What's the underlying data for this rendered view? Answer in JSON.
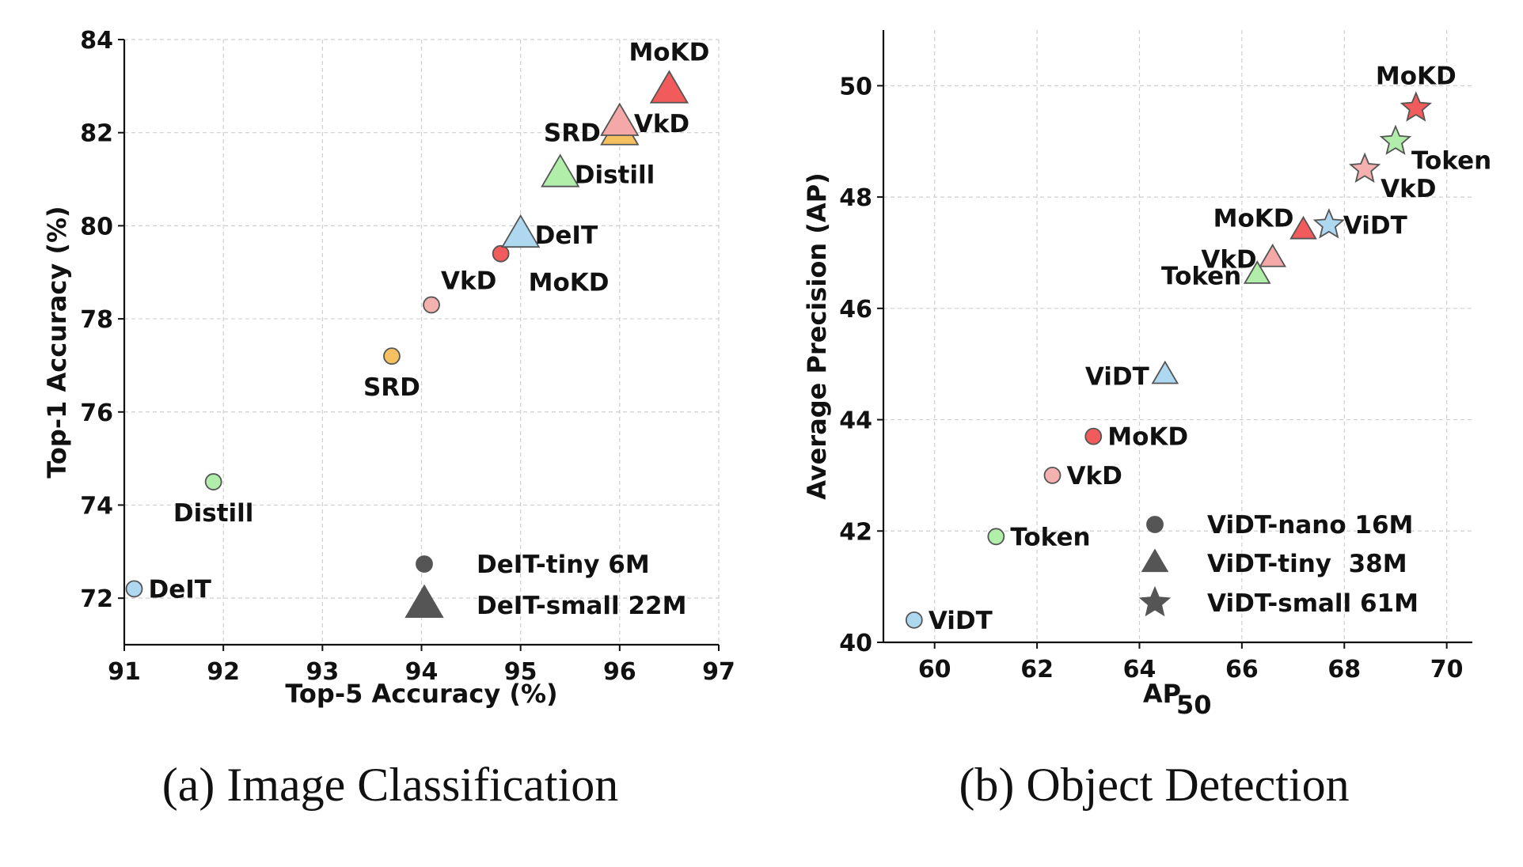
{
  "chart_data": [
    {
      "type": "scatter",
      "caption": "(a) Image Classification",
      "xlabel": "Top-5 Accuracy (%)",
      "ylabel": "Top-1 Accuracy (%)",
      "xlim": [
        91,
        97
      ],
      "ylim": [
        71,
        84
      ],
      "xticks": [
        "91",
        "92",
        "93",
        "94",
        "95",
        "96",
        "97"
      ],
      "yticks": [
        "72",
        "74",
        "76",
        "78",
        "80",
        "82",
        "84"
      ],
      "grid": true,
      "legend": {
        "position": "bottom-right",
        "items": [
          {
            "marker": "circle",
            "label": "DeIT-tiny 6M"
          },
          {
            "marker": "triangle",
            "label": "DeIT-small 22M"
          }
        ]
      },
      "points": [
        {
          "label": "DeIT",
          "marker": "circle",
          "x": 91.1,
          "y": 72.2,
          "color": "#add8f0",
          "label_pos": "right"
        },
        {
          "label": "Distill",
          "marker": "circle",
          "x": 91.9,
          "y": 74.5,
          "color": "#b0eeaa",
          "label_pos": "below"
        },
        {
          "label": "SRD",
          "marker": "circle",
          "x": 93.7,
          "y": 77.2,
          "color": "#f5c060",
          "label_pos": "below"
        },
        {
          "label": "VkD",
          "marker": "circle",
          "x": 94.1,
          "y": 78.3,
          "color": "#f5b0b0",
          "label_pos": "above-left"
        },
        {
          "label": "MoKD",
          "marker": "circle",
          "x": 94.8,
          "y": 79.4,
          "color": "#f25b5b",
          "label_pos": "below-right"
        },
        {
          "label": "DeIT",
          "marker": "triangle",
          "x": 95.0,
          "y": 79.8,
          "color": "#add8f0",
          "label_pos": "right"
        },
        {
          "label": "Distill",
          "marker": "triangle",
          "x": 95.4,
          "y": 81.1,
          "color": "#b0eeaa",
          "label_pos": "right"
        },
        {
          "label": "SRD",
          "marker": "triangle",
          "x": 96.0,
          "y": 82.0,
          "color": "#f5c060",
          "label_pos": "left"
        },
        {
          "label": "VkD",
          "marker": "triangle",
          "x": 96.0,
          "y": 82.2,
          "color": "#f5a8a8",
          "label_pos": "right"
        },
        {
          "label": "MoKD",
          "marker": "triangle",
          "x": 96.5,
          "y": 82.9,
          "color": "#f25b5b",
          "label_pos": "above"
        }
      ]
    },
    {
      "type": "scatter",
      "caption": "(b) Object Detection",
      "xlabel": "AP",
      "xlabel_subscript": "50",
      "ylabel": "Average Precision (AP)",
      "xlim": [
        59,
        70.5
      ],
      "ylim": [
        40,
        51
      ],
      "xticks": [
        "60",
        "62",
        "64",
        "66",
        "68",
        "70"
      ],
      "yticks": [
        "40",
        "42",
        "44",
        "46",
        "48",
        "50"
      ],
      "grid": true,
      "legend": {
        "position": "bottom-right",
        "items": [
          {
            "marker": "circle",
            "label": "ViDT-nano 16M"
          },
          {
            "marker": "triangle",
            "label": "ViDT-tiny  38M"
          },
          {
            "marker": "star",
            "label": "ViDT-small 61M"
          }
        ]
      },
      "points": [
        {
          "label": "ViDT",
          "marker": "circle",
          "x": 59.6,
          "y": 40.4,
          "color": "#add8f0",
          "label_pos": "right"
        },
        {
          "label": "Token",
          "marker": "circle",
          "x": 61.2,
          "y": 41.9,
          "color": "#b0eeaa",
          "label_pos": "right"
        },
        {
          "label": "VkD",
          "marker": "circle",
          "x": 62.3,
          "y": 43.0,
          "color": "#f5b0b0",
          "label_pos": "right"
        },
        {
          "label": "MoKD",
          "marker": "circle",
          "x": 63.1,
          "y": 43.7,
          "color": "#f25b5b",
          "label_pos": "right"
        },
        {
          "label": "ViDT",
          "marker": "triangle",
          "x": 64.5,
          "y": 44.8,
          "color": "#add8f0",
          "label_pos": "left"
        },
        {
          "label": "Token",
          "marker": "triangle",
          "x": 66.3,
          "y": 46.6,
          "color": "#b0eeaa",
          "label_pos": "left"
        },
        {
          "label": "VkD",
          "marker": "triangle",
          "x": 66.6,
          "y": 46.9,
          "color": "#f5a8a8",
          "label_pos": "left"
        },
        {
          "label": "MoKD",
          "marker": "triangle",
          "x": 67.2,
          "y": 47.4,
          "color": "#f25b5b",
          "label_pos": "above-left"
        },
        {
          "label": "ViDT",
          "marker": "star",
          "x": 67.7,
          "y": 47.5,
          "color": "#add8f0",
          "label_pos": "right"
        },
        {
          "label": "VkD",
          "marker": "star",
          "x": 68.4,
          "y": 48.5,
          "color": "#f5b0b0",
          "label_pos": "below-right"
        },
        {
          "label": "Token",
          "marker": "star",
          "x": 69.0,
          "y": 49.0,
          "color": "#b0eeaa",
          "label_pos": "below-right"
        },
        {
          "label": "MoKD",
          "marker": "star",
          "x": 69.4,
          "y": 49.6,
          "color": "#f25b5b",
          "label_pos": "above"
        }
      ]
    }
  ]
}
